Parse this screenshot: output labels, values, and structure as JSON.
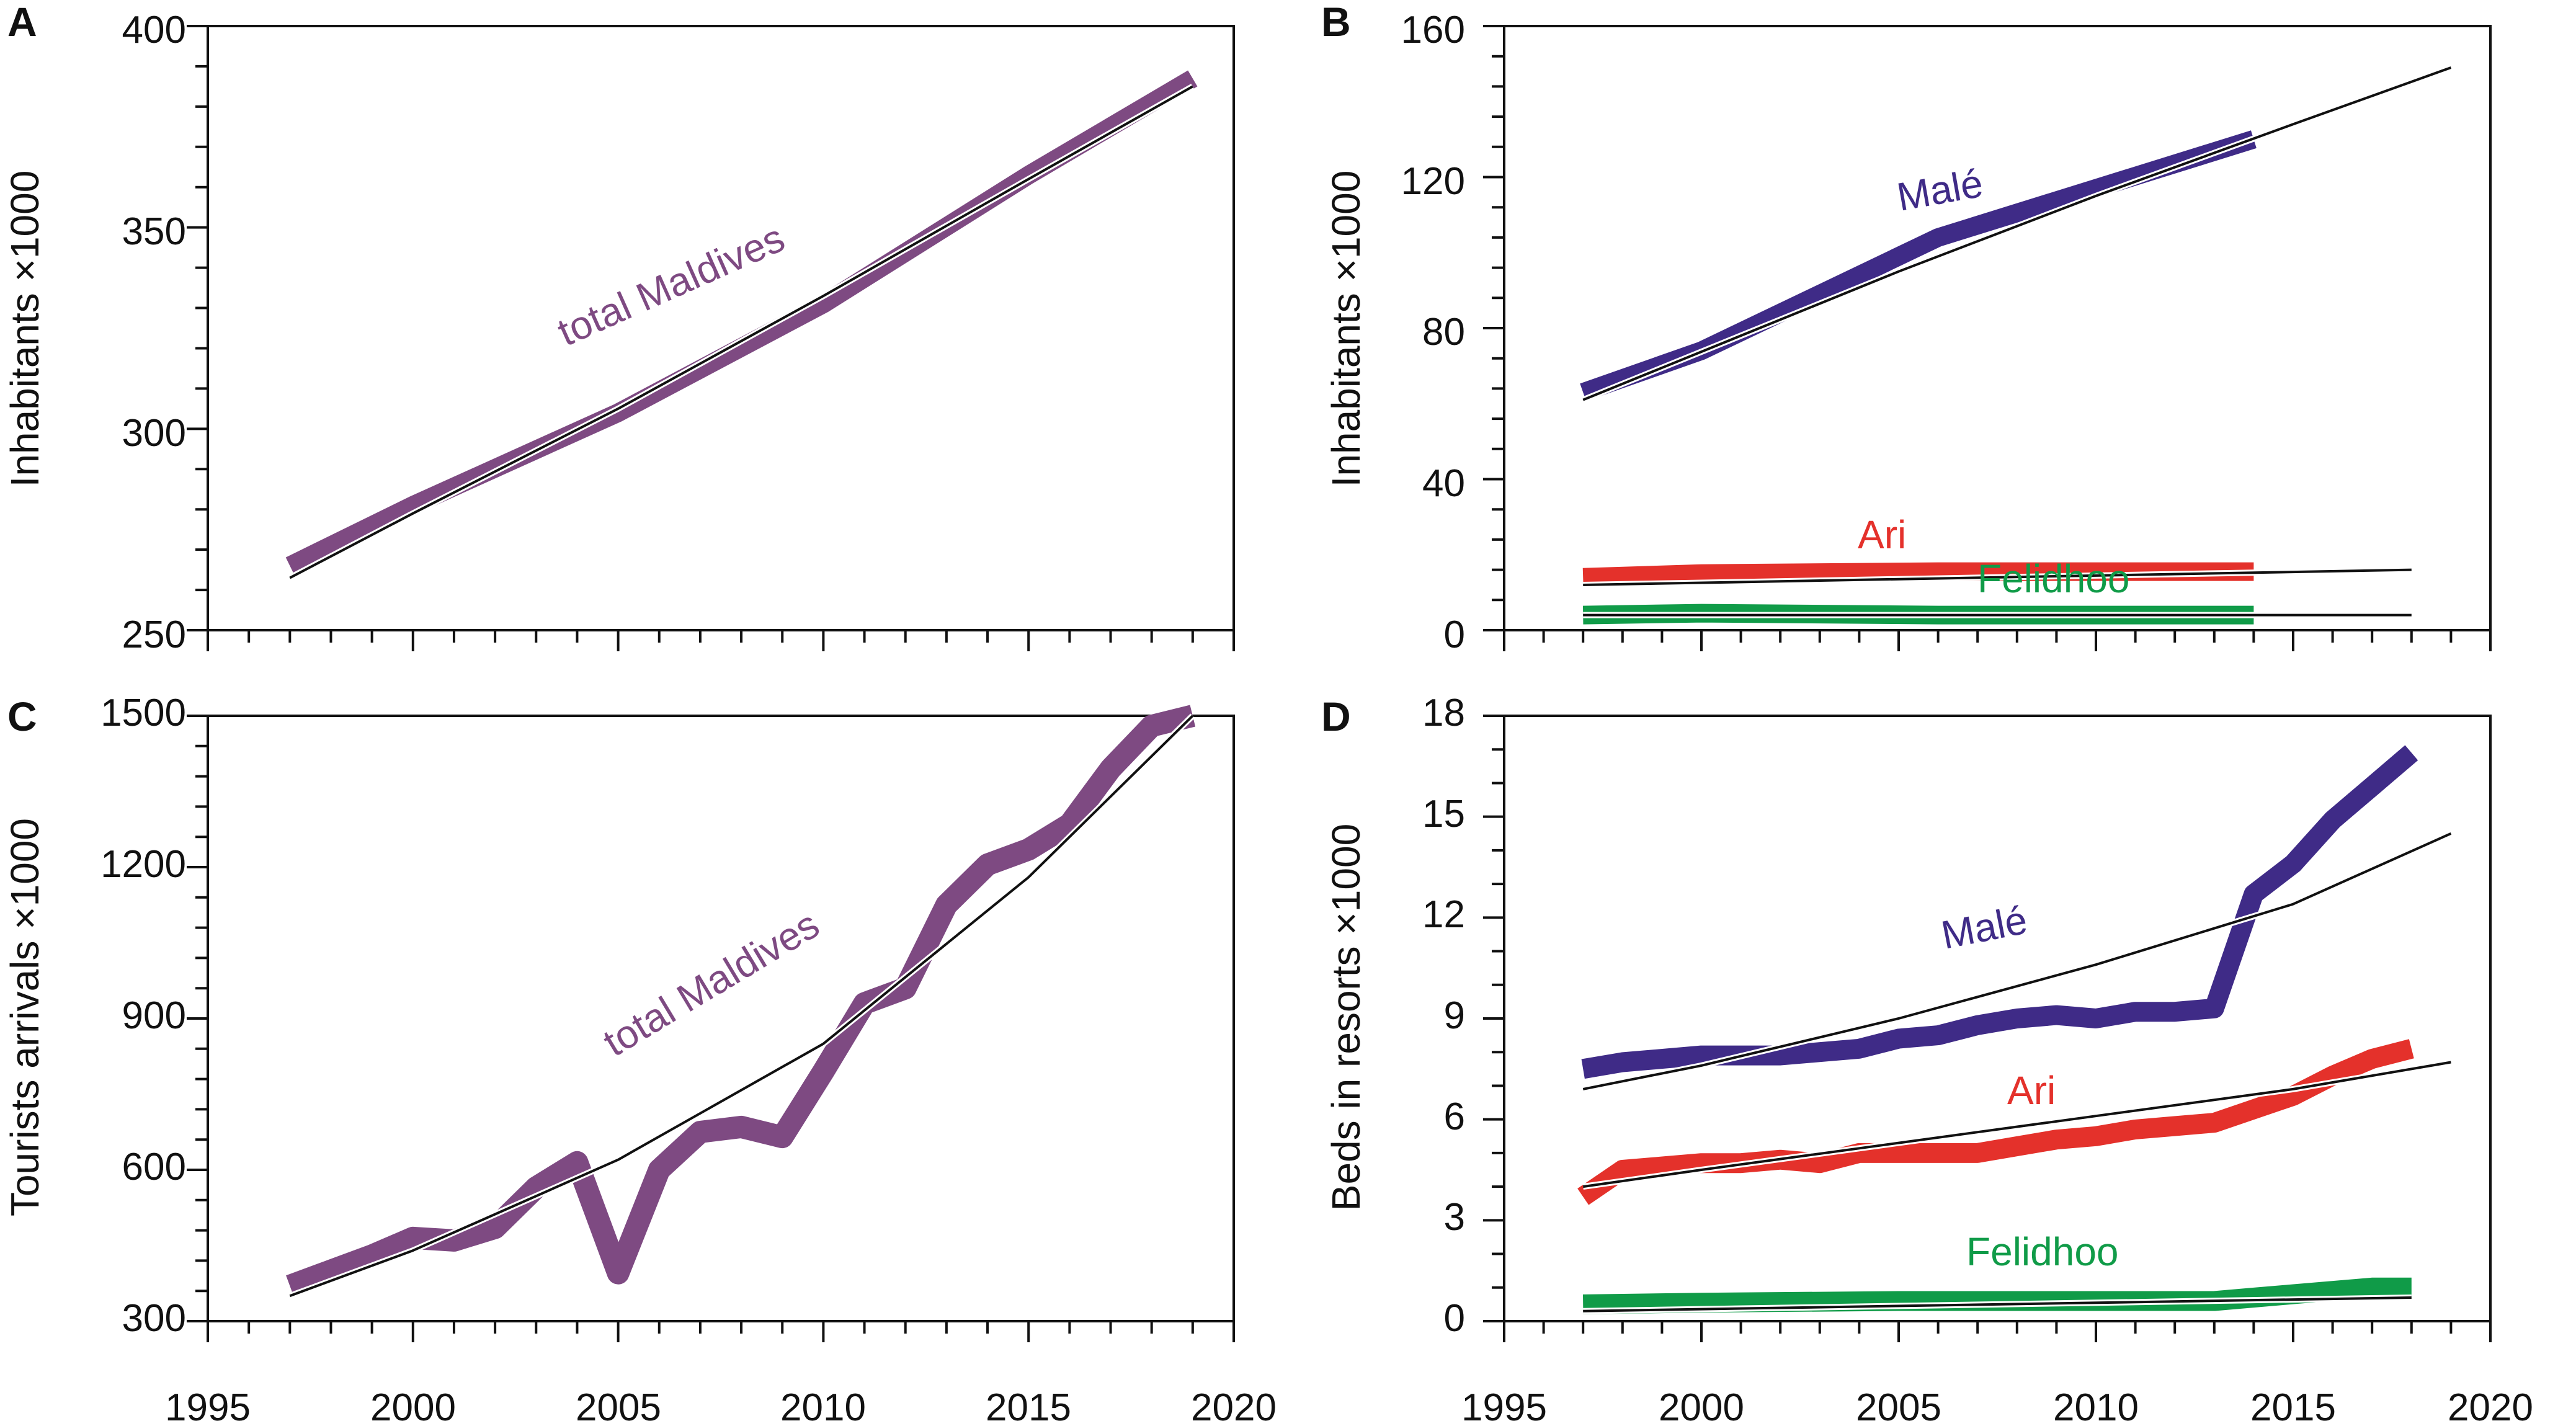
{
  "colors": {
    "purple": "#7e4a82",
    "indigo": "#3f2b87",
    "red": "#e4312b",
    "green": "#109b48",
    "trend": "#111111"
  },
  "chart_data": [
    {
      "id": "A",
      "type": "line",
      "panel_label": "A",
      "ylabel": "Inhabitants ×1000",
      "xlim": [
        1995,
        2020
      ],
      "ylim": [
        250,
        400
      ],
      "xticks": [],
      "yticks": [
        "250",
        "300",
        "350",
        "400"
      ],
      "series": [
        {
          "name": "total Maldives",
          "label": "total Maldives",
          "color": "#7e4a82",
          "x": [
            1997,
            2000,
            2005,
            2010,
            2015,
            2019
          ],
          "y": [
            266,
            281,
            304,
            331,
            363,
            387
          ]
        }
      ],
      "trends": [
        {
          "x": [
            1997,
            2000,
            2005,
            2010,
            2015,
            2019
          ],
          "y": [
            263,
            279,
            305,
            333,
            362,
            385
          ]
        }
      ]
    },
    {
      "id": "B",
      "type": "line",
      "panel_label": "B",
      "ylabel": "Inhabitants ×1000",
      "xlim": [
        1995,
        2020
      ],
      "ylim": [
        0,
        160
      ],
      "xticks": [],
      "yticks": [
        "0",
        "40",
        "80",
        "120",
        "160"
      ],
      "series": [
        {
          "name": "Malé",
          "label": "Malé",
          "color": "#3f2b87",
          "x": [
            1997,
            2000,
            2006,
            2014
          ],
          "y": [
            63,
            74,
            104,
            130
          ]
        },
        {
          "name": "Ari",
          "label": "Ari",
          "color": "#e4312b",
          "x": [
            1997,
            2000,
            2006,
            2014
          ],
          "y": [
            14,
            15,
            15.5,
            15.5
          ]
        },
        {
          "name": "Felidhoo",
          "label": "Felidhoo",
          "color": "#109b48",
          "x": [
            1997,
            2000,
            2006,
            2014
          ],
          "y": [
            4,
            4.5,
            4,
            4
          ]
        }
      ],
      "trends": [
        {
          "x": [
            1997,
            2005,
            2010,
            2015,
            2019
          ],
          "y": [
            61,
            95,
            115,
            134,
            149
          ]
        },
        {
          "x": [
            1997,
            2018
          ],
          "y": [
            12,
            16
          ]
        },
        {
          "x": [
            1997,
            2018
          ],
          "y": [
            4,
            4
          ]
        }
      ]
    },
    {
      "id": "C",
      "type": "line",
      "panel_label": "C",
      "ylabel": "Tourists arrivals ×1000",
      "xlim": [
        1995,
        2020
      ],
      "ylim": [
        300,
        1500
      ],
      "xticks": [
        "1995",
        "2000",
        "2005",
        "2010",
        "2015",
        "2020"
      ],
      "yticks": [
        "300",
        "600",
        "900",
        "1200",
        "1500"
      ],
      "series": [
        {
          "name": "total Maldives",
          "label": "total Maldives",
          "color": "#7e4a82",
          "x": [
            1997,
            1998,
            1999,
            2000,
            2001,
            2002,
            2003,
            2004,
            2005,
            2006,
            2007,
            2008,
            2009,
            2010,
            2011,
            2012,
            2013,
            2014,
            2015,
            2016,
            2017,
            2018,
            2019
          ],
          "y": [
            370,
            400,
            430,
            465,
            460,
            485,
            565,
            615,
            395,
            600,
            675,
            685,
            665,
            795,
            930,
            960,
            1125,
            1205,
            1235,
            1285,
            1395,
            1480,
            1500
          ]
        }
      ],
      "trends": [
        {
          "x": [
            1997,
            2000,
            2005,
            2010,
            2015,
            2019
          ],
          "y": [
            350,
            440,
            620,
            850,
            1180,
            1500
          ]
        }
      ]
    },
    {
      "id": "D",
      "type": "line",
      "panel_label": "D",
      "ylabel": "Beds in resorts ×1000",
      "xlim": [
        1995,
        2020
      ],
      "ylim": [
        0,
        18
      ],
      "xticks": [
        "1995",
        "2000",
        "2005",
        "2010",
        "2015",
        "2020"
      ],
      "yticks": [
        "0",
        "3",
        "6",
        "9",
        "12",
        "15",
        "18"
      ],
      "series": [
        {
          "name": "Malé",
          "label": "Malé",
          "color": "#3f2b87",
          "x": [
            1997,
            1998,
            1999,
            2000,
            2001,
            2002,
            2003,
            2004,
            2005,
            2006,
            2007,
            2008,
            2009,
            2010,
            2011,
            2012,
            2013,
            2014,
            2015,
            2016,
            2017,
            2018
          ],
          "y": [
            7.5,
            7.7,
            7.8,
            7.9,
            7.9,
            7.9,
            8.0,
            8.1,
            8.4,
            8.5,
            8.8,
            9.0,
            9.1,
            9.0,
            9.2,
            9.2,
            9.3,
            12.7,
            13.6,
            14.9,
            15.9,
            16.9
          ]
        },
        {
          "name": "Ari",
          "label": "Ari",
          "color": "#e4312b",
          "x": [
            1997,
            1998,
            1999,
            2000,
            2001,
            2002,
            2003,
            2004,
            2005,
            2006,
            2007,
            2008,
            2009,
            2010,
            2011,
            2012,
            2013,
            2014,
            2015,
            2016,
            2017,
            2018
          ],
          "y": [
            3.7,
            4.5,
            4.6,
            4.7,
            4.7,
            4.8,
            4.7,
            5.0,
            5.0,
            5.0,
            5.0,
            5.2,
            5.4,
            5.5,
            5.7,
            5.8,
            5.9,
            6.3,
            6.7,
            7.3,
            7.8,
            8.1
          ]
        },
        {
          "name": "Felidhoo",
          "label": "Felidhoo",
          "color": "#109b48",
          "x": [
            1997,
            2000,
            2005,
            2010,
            2013,
            2014,
            2015,
            2016,
            2017,
            2018
          ],
          "y": [
            0.5,
            0.55,
            0.6,
            0.6,
            0.6,
            0.7,
            0.8,
            0.9,
            1.0,
            1.0
          ]
        }
      ],
      "trends": [
        {
          "x": [
            1997,
            2000,
            2005,
            2010,
            2015,
            2019
          ],
          "y": [
            6.9,
            7.6,
            9.0,
            10.6,
            12.4,
            14.5
          ]
        },
        {
          "x": [
            1997,
            2000,
            2005,
            2010,
            2015,
            2019
          ],
          "y": [
            4.0,
            4.5,
            5.3,
            6.1,
            6.9,
            7.7
          ]
        },
        {
          "x": [
            1997,
            2018
          ],
          "y": [
            0.3,
            0.7
          ]
        }
      ]
    }
  ]
}
